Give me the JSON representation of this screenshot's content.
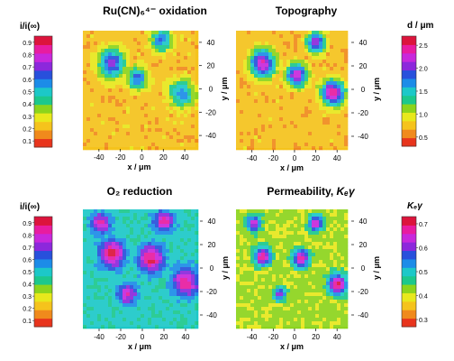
{
  "chart_data": [
    {
      "type": "heatmap",
      "id": "oxidation",
      "title": "Ru(CN)₆⁴⁻ oxidation",
      "xlabel": "x / μm",
      "ylabel": "y / μm",
      "xticks": [
        -40,
        -20,
        0,
        20,
        40
      ],
      "yticks": [
        40,
        20,
        0,
        -20,
        -40
      ],
      "xlim": [
        -55,
        50
      ],
      "ylim": [
        -50,
        50
      ],
      "background_level": 0.22,
      "spots": [
        {
          "x": -28,
          "y": 22,
          "r": 13,
          "level": 0.7
        },
        {
          "x": 18,
          "y": 42,
          "r": 10,
          "level": 0.6
        },
        {
          "x": -4,
          "y": 9,
          "r": 10,
          "level": 0.62
        },
        {
          "x": 37,
          "y": -4,
          "r": 12,
          "level": 0.6
        }
      ]
    },
    {
      "type": "heatmap",
      "id": "topography",
      "title": "Topography",
      "xlabel": "x / μm",
      "ylabel": "y / μm",
      "xticks": [
        -40,
        -20,
        0,
        20,
        40
      ],
      "yticks": [
        40,
        20,
        0,
        -20,
        -40
      ],
      "xlim": [
        -55,
        50
      ],
      "ylim": [
        -50,
        50
      ],
      "background_level": 0.75,
      "spots": [
        {
          "x": -30,
          "y": 22,
          "r": 12,
          "level": 2.4
        },
        {
          "x": 20,
          "y": 40,
          "r": 9,
          "level": 2.2
        },
        {
          "x": 2,
          "y": 12,
          "r": 10,
          "level": 2.3
        },
        {
          "x": 36,
          "y": -3,
          "r": 11,
          "level": 2.5
        }
      ]
    },
    {
      "type": "heatmap",
      "id": "o2-reduction",
      "title": "O₂ reduction",
      "xlabel": "x / μm",
      "ylabel": "y / μm",
      "xticks": [
        -40,
        -20,
        0,
        20,
        40
      ],
      "yticks": [
        40,
        20,
        0,
        -20,
        -40
      ],
      "xlim": [
        -55,
        50
      ],
      "ylim": [
        -50,
        50
      ],
      "background_level": 0.48,
      "spots": [
        {
          "x": -38,
          "y": 38,
          "r": 9,
          "level": 0.85
        },
        {
          "x": 20,
          "y": 40,
          "r": 9,
          "level": 0.85
        },
        {
          "x": -28,
          "y": 12,
          "r": 12,
          "level": 0.9
        },
        {
          "x": 8,
          "y": 8,
          "r": 12,
          "level": 0.9
        },
        {
          "x": 40,
          "y": -12,
          "r": 12,
          "level": 0.88
        },
        {
          "x": -14,
          "y": -22,
          "r": 9,
          "level": 0.82
        }
      ]
    },
    {
      "type": "heatmap",
      "id": "permeability",
      "title": "Permeability, ",
      "title_math": "Kₑγ",
      "xlabel": "x / μm",
      "ylabel": "y / μm",
      "xticks": [
        -40,
        -20,
        0,
        20,
        40
      ],
      "yticks": [
        40,
        20,
        0,
        -20,
        -40
      ],
      "xlim": [
        -55,
        50
      ],
      "ylim": [
        -50,
        50
      ],
      "background_level": 0.42,
      "spots": [
        {
          "x": -38,
          "y": 38,
          "r": 7,
          "level": 0.65
        },
        {
          "x": 20,
          "y": 38,
          "r": 7,
          "level": 0.66
        },
        {
          "x": -30,
          "y": 10,
          "r": 8,
          "level": 0.7
        },
        {
          "x": 6,
          "y": 8,
          "r": 8,
          "level": 0.68
        },
        {
          "x": 40,
          "y": -14,
          "r": 9,
          "level": 0.7
        },
        {
          "x": -14,
          "y": -22,
          "r": 6,
          "level": 0.6
        }
      ]
    }
  ],
  "colorbars": [
    {
      "id": "colorbar-top-left",
      "label": "i/i(∞)",
      "ticks": [
        "0.9",
        "0.8",
        "0.7",
        "0.6",
        "0.5",
        "0.4",
        "0.3",
        "0.2",
        "0.1"
      ],
      "range": [
        0.05,
        0.95
      ],
      "tick_side": "left"
    },
    {
      "id": "colorbar-top-right",
      "label": "d / μm",
      "ticks": [
        "2.5",
        "2.0",
        "1.5",
        "1.0",
        "0.5"
      ],
      "range": [
        0.3,
        2.7
      ],
      "tick_side": "right"
    },
    {
      "id": "colorbar-bottom-left",
      "label": "i/i(∞)",
      "ticks": [
        "0.9",
        "0.8",
        "0.7",
        "0.6",
        "0.5",
        "0.4",
        "0.3",
        "0.2",
        "0.1"
      ],
      "range": [
        0.05,
        0.95
      ],
      "tick_side": "left"
    },
    {
      "id": "colorbar-bottom-right",
      "label": "Kₑγ",
      "ticks": [
        "0.7",
        "0.6",
        "0.5",
        "0.4",
        "0.3"
      ],
      "range": [
        0.27,
        0.73
      ],
      "tick_side": "right"
    }
  ],
  "palette": [
    "#e8341c",
    "#f08a1c",
    "#f5c31c",
    "#e8e81c",
    "#8cd41c",
    "#1cc88c",
    "#1cc8c8",
    "#1c8ce8",
    "#2850dc",
    "#8c28dc",
    "#c828dc",
    "#e81ca0",
    "#dc143c"
  ]
}
